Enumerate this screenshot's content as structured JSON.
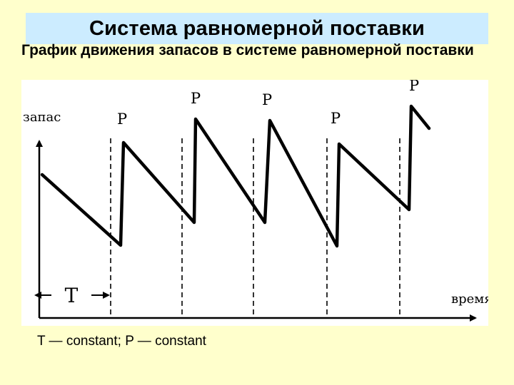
{
  "slide": {
    "title": "Система равномерной поставки",
    "subtitle": "График движения запасов в системе равномерной поставки",
    "caption": "T — constant; P — constant"
  },
  "diagram": {
    "y_axis_label": "запас",
    "x_axis_label": "время",
    "period_label": "T",
    "delivery_label": "P",
    "delivery_count": 5,
    "colors": {
      "background": "#ffffcc",
      "title_bar": "#ccecff",
      "figure": "#ffffff",
      "ink": "#000000"
    }
  }
}
